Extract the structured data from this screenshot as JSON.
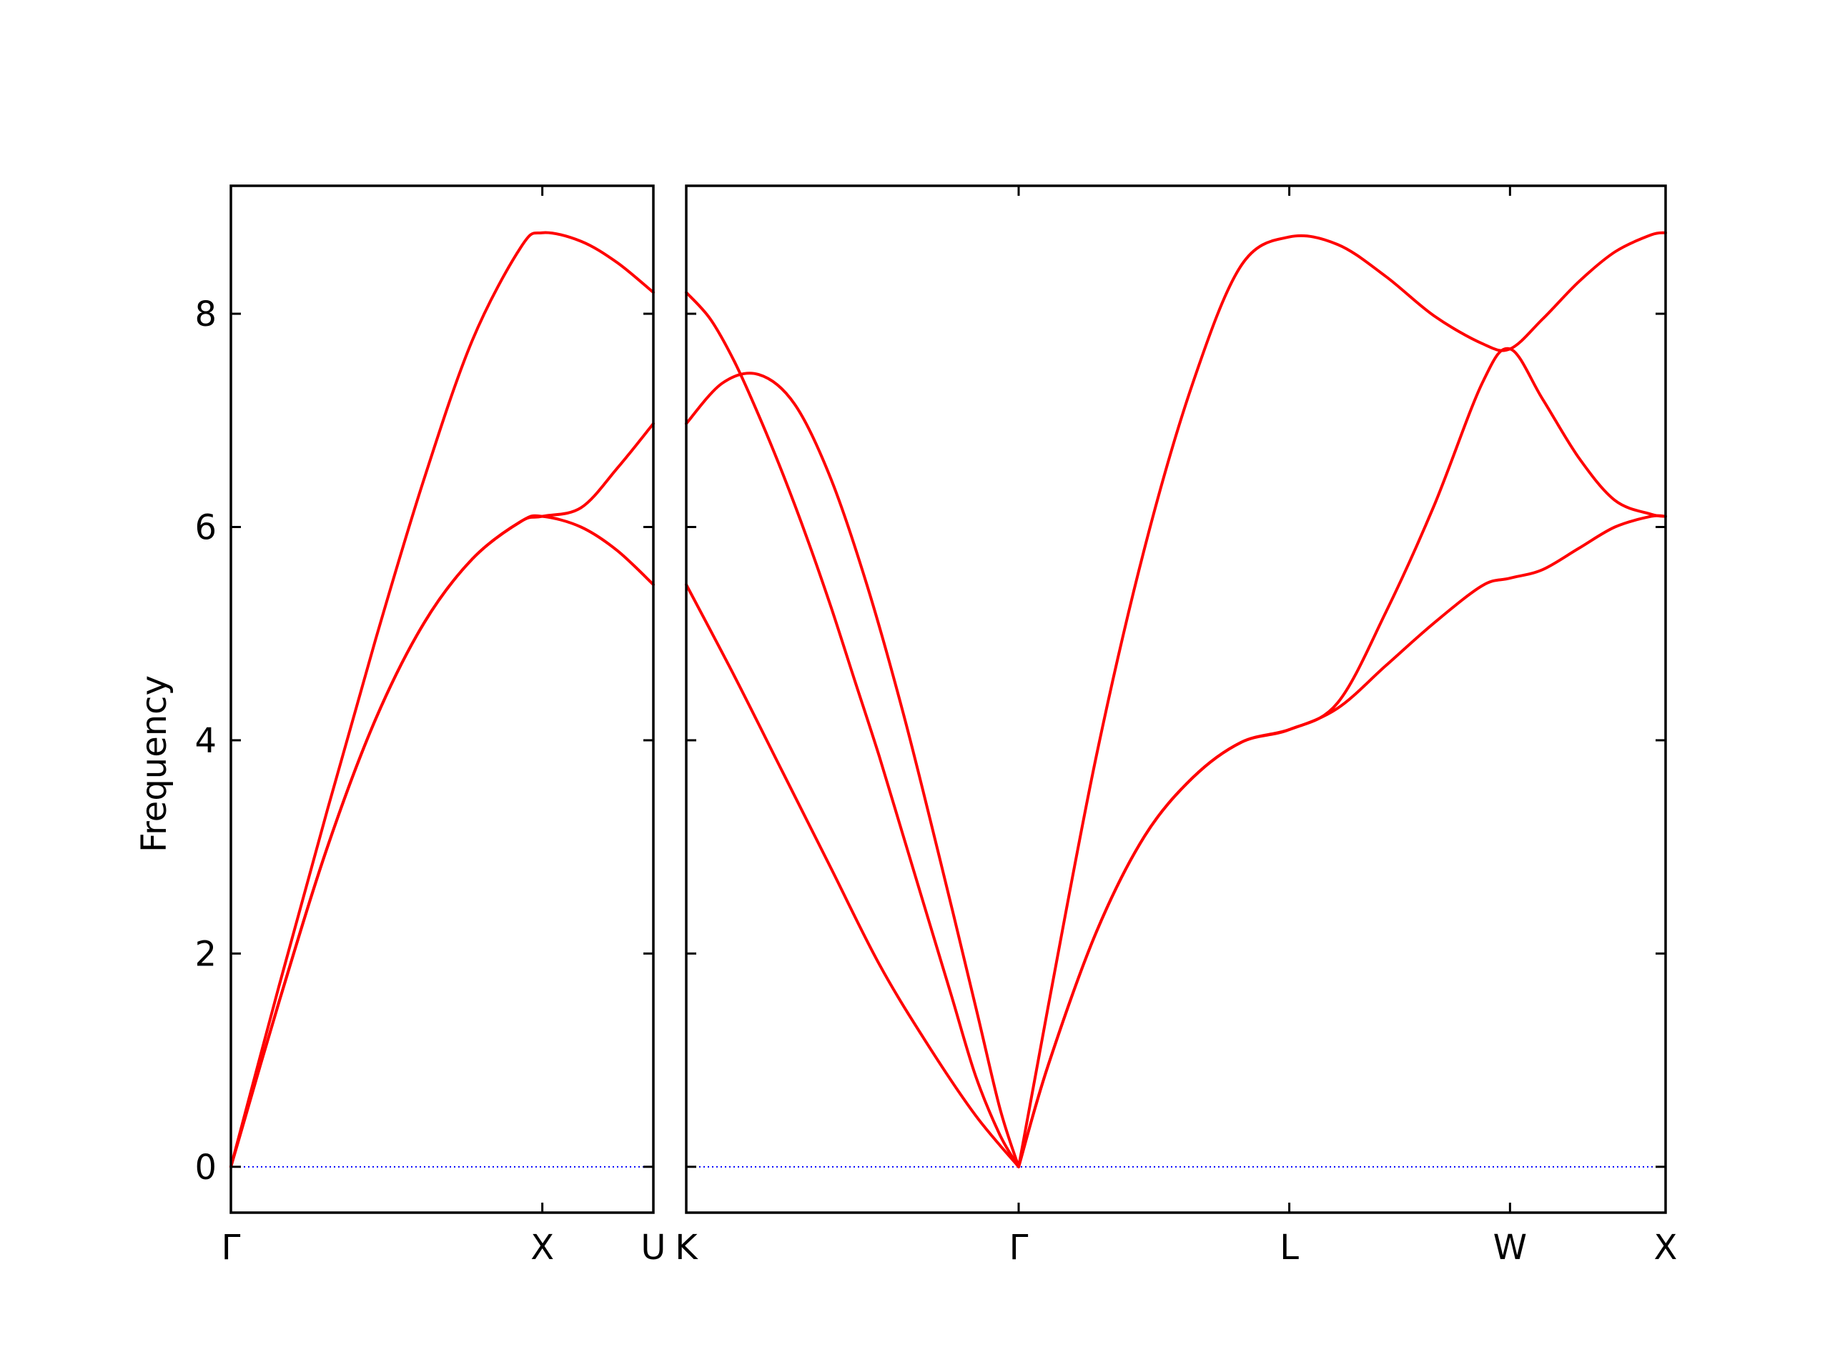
{
  "chart_data": {
    "type": "line",
    "ylabel": "Frequency",
    "ylim": [
      -0.43,
      9.2
    ],
    "yticks": [
      0,
      2,
      4,
      6,
      8
    ],
    "grid": false,
    "legend": "none",
    "colors": {
      "band": "#ff0000",
      "zero_line": "#0000ff",
      "axes": "#000000"
    },
    "panels": [
      {
        "id": "panel-1",
        "xlim": [
          0,
          1.75
        ],
        "xticks": [
          {
            "label": "Γ",
            "x": 0
          },
          {
            "label": "X",
            "x": 1.29
          },
          {
            "label": "U",
            "x": 1.75
          }
        ],
        "series": [
          {
            "x": [
              0,
              0.2,
              0.4,
              0.6,
              0.8,
              1.0,
              1.2,
              1.29,
              1.45,
              1.6,
              1.75
            ],
            "values": [
              0,
              1.7,
              3.35,
              4.95,
              6.45,
              7.75,
              8.62,
              8.76,
              8.68,
              8.48,
              8.2
            ]
          },
          {
            "x": [
              0,
              0.2,
              0.4,
              0.6,
              0.8,
              1.0,
              1.2,
              1.29,
              1.45,
              1.6,
              1.75
            ],
            "values": [
              0,
              1.55,
              3.0,
              4.2,
              5.1,
              5.7,
              6.05,
              6.1,
              6.18,
              6.55,
              6.97
            ]
          },
          {
            "x": [
              0,
              0.2,
              0.4,
              0.6,
              0.8,
              1.0,
              1.2,
              1.29,
              1.45,
              1.6,
              1.75
            ],
            "values": [
              0,
              1.55,
              3.0,
              4.2,
              5.1,
              5.7,
              6.05,
              6.1,
              6.0,
              5.78,
              5.46
            ]
          }
        ]
      },
      {
        "id": "panel-2",
        "xlim": [
          0,
          4.06
        ],
        "xticks": [
          {
            "label": "K",
            "x": 0
          },
          {
            "label": "Γ",
            "x": 1.378
          },
          {
            "label": "L",
            "x": 2.5
          },
          {
            "label": "W",
            "x": 3.415
          },
          {
            "label": "X",
            "x": 4.06
          }
        ],
        "series": [
          {
            "x": [
              0,
              0.1,
              0.2,
              0.3,
              0.4,
              0.5,
              0.6,
              0.7,
              0.8,
              0.9,
              1.0,
              1.1,
              1.2,
              1.3,
              1.378
            ],
            "values": [
              8.2,
              7.95,
              7.55,
              7.05,
              6.5,
              5.9,
              5.25,
              4.55,
              3.85,
              3.1,
              2.35,
              1.6,
              0.85,
              0.3,
              0
            ]
          },
          {
            "x": [
              0,
              0.15,
              0.3,
              0.45,
              0.6,
              0.75,
              0.9,
              1.05,
              1.2,
              1.3,
              1.378
            ],
            "values": [
              6.97,
              7.35,
              7.43,
              7.15,
              6.45,
              5.45,
              4.25,
              2.9,
              1.5,
              0.55,
              0
            ]
          },
          {
            "x": [
              0,
              0.2,
              0.4,
              0.6,
              0.8,
              1.0,
              1.2,
              1.378
            ],
            "values": [
              5.46,
              4.6,
              3.7,
              2.8,
              1.9,
              1.15,
              0.48,
              0
            ]
          },
          {
            "x": [
              1.378,
              1.5,
              1.7,
              1.9,
              2.1,
              2.3,
              2.5,
              2.7,
              2.9,
              3.1,
              3.3,
              3.415,
              3.55,
              3.7,
              3.85,
              4.0,
              4.06
            ],
            "values": [
              0,
              1.5,
              3.85,
              5.8,
              7.35,
              8.45,
              8.72,
              8.65,
              8.35,
              7.98,
              7.72,
              7.67,
              7.95,
              8.3,
              8.58,
              8.74,
              8.76
            ]
          },
          {
            "x": [
              1.378,
              1.5,
              1.7,
              1.9,
              2.1,
              2.3,
              2.5,
              2.7,
              2.9,
              3.1,
              3.3,
              3.415,
              3.55,
              3.7,
              3.85,
              4.0,
              4.06
            ],
            "values": [
              0,
              0.95,
              2.2,
              3.1,
              3.65,
              3.98,
              4.1,
              4.35,
              5.2,
              6.2,
              7.35,
              7.67,
              7.2,
              6.65,
              6.25,
              6.12,
              6.1
            ]
          },
          {
            "x": [
              1.378,
              1.5,
              1.7,
              1.9,
              2.1,
              2.3,
              2.5,
              2.7,
              2.9,
              3.1,
              3.3,
              3.415,
              3.55,
              3.7,
              3.85,
              4.0,
              4.06
            ],
            "values": [
              0,
              0.95,
              2.2,
              3.1,
              3.65,
              3.98,
              4.1,
              4.3,
              4.7,
              5.1,
              5.45,
              5.52,
              5.6,
              5.8,
              6.0,
              6.1,
              6.1
            ]
          }
        ]
      }
    ]
  }
}
